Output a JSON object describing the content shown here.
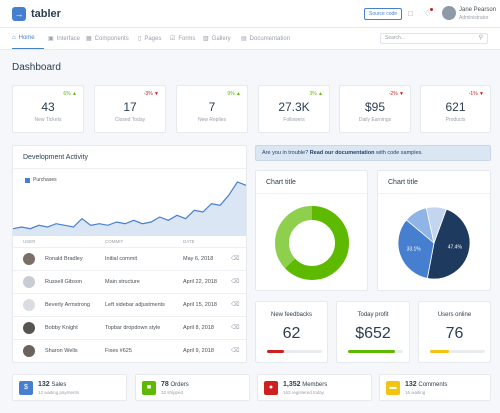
{
  "app": {
    "name": "tabler",
    "logo_letter": "→"
  },
  "topbar": {
    "source_code_label": "Source code",
    "user_name": "Jane Pearson",
    "user_role": "Administrator"
  },
  "nav": {
    "items": [
      {
        "label": "Home",
        "icon": "home-icon",
        "glyph": "⌂"
      },
      {
        "label": "Interface",
        "icon": "box-icon",
        "glyph": "▣"
      },
      {
        "label": "Components",
        "icon": "calendar-icon",
        "glyph": "▦"
      },
      {
        "label": "Pages",
        "icon": "file-icon",
        "glyph": "▯"
      },
      {
        "label": "Forms",
        "icon": "check-square-icon",
        "glyph": "☑"
      },
      {
        "label": "Gallery",
        "icon": "image-icon",
        "glyph": "▨"
      },
      {
        "label": "Documentation",
        "icon": "file-text-icon",
        "glyph": "▤"
      }
    ],
    "search_placeholder": "Search..."
  },
  "page_title": "Dashboard",
  "stats": [
    {
      "value": "43",
      "label": "New Tickets",
      "change": "6%",
      "dir": "up"
    },
    {
      "value": "17",
      "label": "Closed Today",
      "change": "-3%",
      "dir": "down"
    },
    {
      "value": "7",
      "label": "New Replies",
      "change": "9%",
      "dir": "up"
    },
    {
      "value": "27.3K",
      "label": "Followers",
      "change": "3%",
      "dir": "up"
    },
    {
      "value": "$95",
      "label": "Daily Earnings",
      "change": "-2%",
      "dir": "down"
    },
    {
      "value": "621",
      "label": "Products",
      "change": "-1%",
      "dir": "down"
    }
  ],
  "dev_activity": {
    "title": "Development Activity",
    "legend": "Purchases",
    "columns": {
      "user": "User",
      "commit": "Commit",
      "date": "Date"
    },
    "rows": [
      {
        "name": "Ronald Bradley",
        "commit": "Initial commit",
        "date": "May 6, 2018"
      },
      {
        "name": "Russell Gibson",
        "commit": "Main structure",
        "date": "April 22, 2018"
      },
      {
        "name": "Beverly Armstrong",
        "commit": "Left sidebar adjustments",
        "date": "April 15, 2018"
      },
      {
        "name": "Bobby Knight",
        "commit": "Topbar dropdown style",
        "date": "April 8, 2018"
      },
      {
        "name": "Sharon Wells",
        "commit": "Fixes #625",
        "date": "April 9, 2018"
      }
    ]
  },
  "alert": {
    "prefix": "Are you in trouble?",
    "link": "Read our documentation",
    "suffix": "with code samples."
  },
  "donut_card": {
    "title": "Chart title"
  },
  "pie_card": {
    "title": "Chart title"
  },
  "pie_labels": {
    "a": "47.4%",
    "b": "33.1%"
  },
  "metrics": [
    {
      "title": "New feedbacks",
      "value": "62",
      "progress": 0.3,
      "color": "#cd201f"
    },
    {
      "title": "Today profit",
      "value": "$652",
      "progress": 0.85,
      "color": "#5eba00"
    },
    {
      "title": "Users online",
      "value": "76",
      "progress": 0.35,
      "color": "#f1c40f"
    }
  ],
  "bottom": [
    {
      "count": "132",
      "label": "Sales",
      "sub": "12 waiting payments",
      "color": "#467fcf",
      "glyph": "$",
      "icon": "dollar-icon"
    },
    {
      "count": "78",
      "label": "Orders",
      "sub": "32 shipped",
      "color": "#5eba00",
      "glyph": "■",
      "icon": "cart-icon"
    },
    {
      "count": "1,352",
      "label": "Members",
      "sub": "163 registered today",
      "color": "#cd201f",
      "glyph": "●",
      "icon": "users-icon"
    },
    {
      "count": "132",
      "label": "Comments",
      "sub": "16 waiting",
      "color": "#f1c40f",
      "glyph": "▬",
      "icon": "message-icon"
    }
  ],
  "chart_data": [
    {
      "type": "area",
      "series": [
        {
          "name": "Purchases",
          "values": [
            2,
            3,
            2,
            4,
            3,
            5,
            4,
            3,
            8,
            4,
            5,
            4,
            6,
            5,
            7,
            5,
            6,
            9,
            7,
            10,
            8,
            13,
            12,
            17,
            16,
            22,
            30,
            28
          ]
        }
      ],
      "color": "#467fcf"
    },
    {
      "type": "pie",
      "variant": "donut",
      "slices": [
        {
          "value": 63,
          "color": "#5eba00"
        },
        {
          "value": 37,
          "color": "#8ecf4d"
        }
      ]
    },
    {
      "type": "pie",
      "slices": [
        {
          "value": 47.4,
          "label": "47.4%",
          "color": "#1e3a5f"
        },
        {
          "value": 33.1,
          "label": "33.1%",
          "color": "#467fcf"
        },
        {
          "value": 10.5,
          "color": "#90b4e6"
        },
        {
          "value": 9.0,
          "color": "#c3d5ef"
        }
      ]
    }
  ]
}
